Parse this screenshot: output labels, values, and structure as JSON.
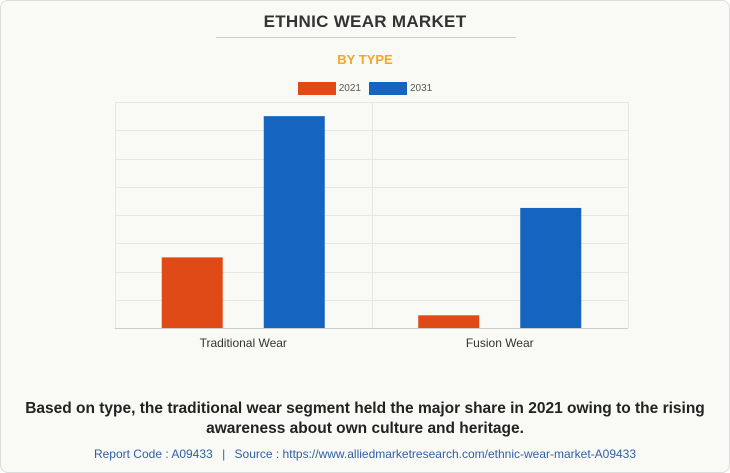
{
  "title": "ETHNIC WEAR MARKET",
  "subtitle": "BY TYPE",
  "chart_data": {
    "type": "bar",
    "categories": [
      "Traditional Wear",
      "Fusion Wear"
    ],
    "series": [
      {
        "name": "2021",
        "values": [
          25,
          4.5
        ],
        "color": "#e04a17"
      },
      {
        "name": "2031",
        "values": [
          75,
          42.5
        ],
        "color": "#1565c0"
      }
    ],
    "ylim": [
      0,
      80
    ],
    "grid": true,
    "legend_position": "top-center"
  },
  "footnote": "Based on type, the traditional wear segment held the major share in 2021 owing to the rising awareness about own culture and heritage.",
  "source": {
    "report_code": "Report Code : A09433",
    "separator": "|",
    "source_text": "Source : https://www.alliedmarketresearch.com/ethnic-wear-market-A09433"
  }
}
